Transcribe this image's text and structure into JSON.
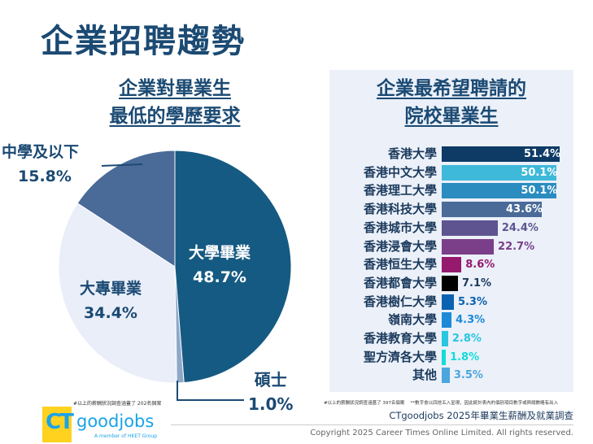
{
  "title": "企業招聘趨勢",
  "chart_data": [
    {
      "type": "pie",
      "title_lines": [
        "企業對畢業生",
        "最低的學歷要求"
      ],
      "slices": [
        {
          "label": "大學畢業",
          "value": 48.7,
          "color": "#155a82"
        },
        {
          "label": "碩士",
          "value": 1.0,
          "color": "#8fa8c8"
        },
        {
          "label": "大專畢業",
          "value": 34.4,
          "color": "#e9eef8"
        },
        {
          "label": "中學及以下",
          "value": 15.8,
          "color": "#4a6a98"
        }
      ],
      "value_labels": [
        "48.7%",
        "1.0%",
        "34.4%",
        "15.8%"
      ],
      "footnote": "#以上的薪酬狀況調查涵蓋了 202名個案"
    },
    {
      "type": "bar",
      "orientation": "horizontal",
      "title_lines": [
        "企業最希望聘請的",
        "院校畢業生"
      ],
      "categories": [
        "香港大學",
        "香港中文大學",
        "香港理工大學",
        "香港科技大學",
        "香港城市大學",
        "香港浸會大學",
        "香港恒生大學",
        "香港都會大學",
        "香港樹仁大學",
        "嶺南大學",
        "香港教育大學",
        "聖方濟各大學",
        "其他"
      ],
      "values": [
        51.4,
        50.1,
        50.1,
        43.6,
        24.4,
        22.7,
        8.6,
        7.1,
        5.3,
        4.3,
        2.8,
        1.8,
        3.5
      ],
      "value_labels": [
        "51.4%",
        "50.1%",
        "50.1%",
        "43.6%",
        "24.4%",
        "22.7%",
        "8.6%",
        "7.1%",
        "5.3%",
        "4.3%",
        "2.8%",
        "1.8%",
        "3.5%"
      ],
      "colors": [
        "#0e3a66",
        "#3fb9d9",
        "#2a8cbf",
        "#4a6a98",
        "#5e5490",
        "#7b3f8a",
        "#951a6e",
        "#000000",
        "#0a62b0",
        "#1a8ad6",
        "#2ac6e0",
        "#10dcd8",
        "#4aa6dc"
      ],
      "footnote": "#以上的薪酬狀況調查涵蓋了 397名個案　 **數字會以四捨五入呈現，因此統計表內的個別項目數字或與總數略有出入"
    }
  ],
  "footer": {
    "survey": "CTgoodjobs 2025年畢業生薪酬及就業調查",
    "copyright": "Copyright 2025 Career Times Online Limited. All rights reserved.",
    "logo_ct": "CT",
    "logo_goodjobs": "goodjobs",
    "logo_tagline": "A member of HKET Group"
  }
}
